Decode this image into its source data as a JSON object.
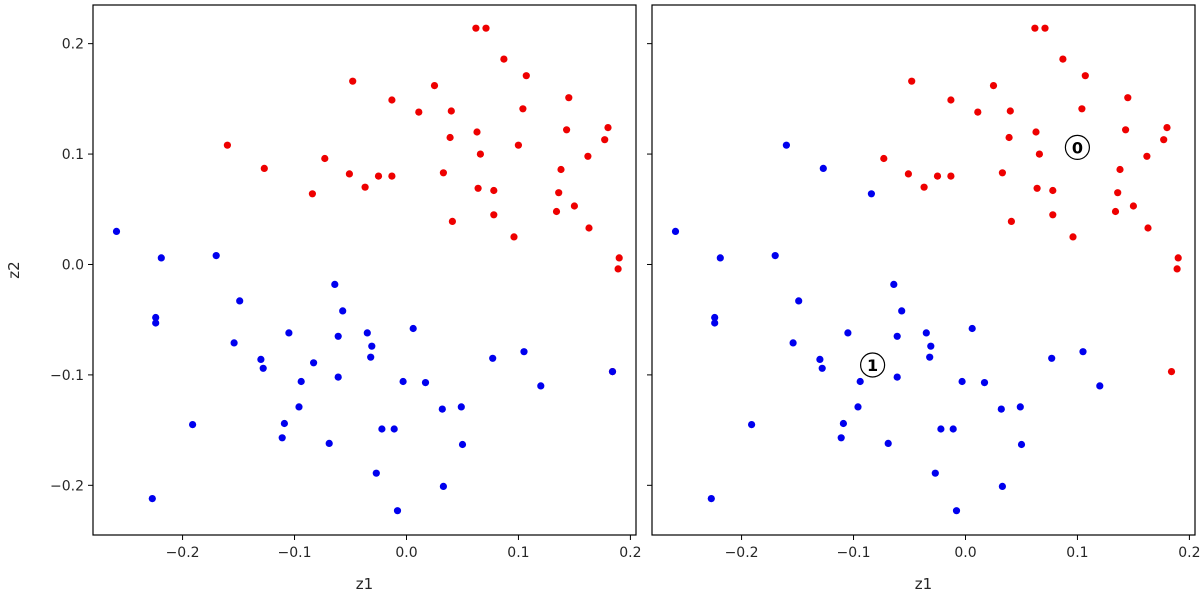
{
  "colors": {
    "class_1": "#0000ee",
    "class_0": "#ee0000",
    "frame": "#000000",
    "text": "#262626"
  },
  "chart_data": [
    {
      "type": "scatter",
      "panel": "left",
      "xlabel": "z1",
      "ylabel": "z2",
      "xlim": [
        -0.28,
        0.205
      ],
      "ylim": [
        -0.245,
        0.235
      ],
      "xticks": [
        -0.2,
        -0.1,
        0.0,
        0.1,
        0.2
      ],
      "xtick_labels": [
        "−0.2",
        "−0.1",
        "0.0",
        "0.1",
        "0.2"
      ],
      "yticks": [
        -0.2,
        -0.1,
        0.0,
        0.1,
        0.2
      ],
      "ytick_labels": [
        "−0.2",
        "−0.1",
        "0.0",
        "0.1",
        "0.2"
      ],
      "series": [
        {
          "color": "red",
          "points": [
            [
              0.062,
              0.214
            ],
            [
              0.071,
              0.214
            ],
            [
              0.087,
              0.186
            ],
            [
              0.107,
              0.171
            ],
            [
              -0.048,
              0.166
            ],
            [
              0.025,
              0.162
            ],
            [
              -0.013,
              0.149
            ],
            [
              0.145,
              0.151
            ],
            [
              0.011,
              0.138
            ],
            [
              0.04,
              0.139
            ],
            [
              0.104,
              0.141
            ],
            [
              0.063,
              0.12
            ],
            [
              0.143,
              0.122
            ],
            [
              0.18,
              0.124
            ],
            [
              0.039,
              0.115
            ],
            [
              0.177,
              0.113
            ],
            [
              -0.16,
              0.108
            ],
            [
              0.1,
              0.108
            ],
            [
              0.162,
              0.098
            ],
            [
              0.066,
              0.1
            ],
            [
              -0.073,
              0.096
            ],
            [
              -0.127,
              0.087
            ],
            [
              0.138,
              0.086
            ],
            [
              -0.051,
              0.082
            ],
            [
              0.033,
              0.083
            ],
            [
              -0.025,
              0.08
            ],
            [
              -0.013,
              0.08
            ],
            [
              -0.037,
              0.07
            ],
            [
              0.064,
              0.069
            ],
            [
              0.078,
              0.067
            ],
            [
              -0.084,
              0.064
            ],
            [
              0.136,
              0.065
            ],
            [
              0.15,
              0.053
            ],
            [
              0.134,
              0.048
            ],
            [
              0.078,
              0.045
            ],
            [
              0.041,
              0.039
            ],
            [
              0.163,
              0.033
            ],
            [
              0.096,
              0.025
            ],
            [
              0.19,
              0.006
            ],
            [
              0.189,
              -0.004
            ],
            [
              0.184,
              -0.097
            ]
          ]
        },
        {
          "color": "blue",
          "points": [
            [
              -0.259,
              0.03
            ],
            [
              -0.219,
              0.006
            ],
            [
              -0.17,
              0.008
            ],
            [
              -0.224,
              -0.048
            ],
            [
              -0.224,
              -0.053
            ],
            [
              -0.149,
              -0.033
            ],
            [
              -0.064,
              -0.018
            ],
            [
              -0.057,
              -0.042
            ],
            [
              -0.154,
              -0.071
            ],
            [
              -0.105,
              -0.062
            ],
            [
              -0.061,
              -0.065
            ],
            [
              -0.035,
              -0.062
            ],
            [
              0.006,
              -0.058
            ],
            [
              -0.031,
              -0.074
            ],
            [
              -0.032,
              -0.084
            ],
            [
              -0.13,
              -0.086
            ],
            [
              -0.128,
              -0.094
            ],
            [
              -0.083,
              -0.089
            ],
            [
              0.077,
              -0.085
            ],
            [
              0.105,
              -0.079
            ],
            [
              -0.061,
              -0.102
            ],
            [
              -0.094,
              -0.106
            ],
            [
              -0.003,
              -0.106
            ],
            [
              0.017,
              -0.107
            ],
            [
              0.12,
              -0.11
            ],
            [
              0.184,
              -0.097
            ],
            [
              -0.096,
              -0.129
            ],
            [
              0.049,
              -0.129
            ],
            [
              0.032,
              -0.131
            ],
            [
              -0.109,
              -0.144
            ],
            [
              -0.191,
              -0.145
            ],
            [
              -0.022,
              -0.149
            ],
            [
              -0.011,
              -0.149
            ],
            [
              -0.111,
              -0.157
            ],
            [
              -0.069,
              -0.162
            ],
            [
              0.05,
              -0.163
            ],
            [
              -0.027,
              -0.189
            ],
            [
              0.033,
              -0.201
            ],
            [
              -0.227,
              -0.212
            ],
            [
              -0.008,
              -0.223
            ]
          ]
        }
      ]
    },
    {
      "type": "scatter",
      "panel": "right",
      "xlabel": "z1",
      "ylabel": "",
      "xlim": [
        -0.28,
        0.205
      ],
      "ylim": [
        -0.245,
        0.235
      ],
      "xticks": [
        -0.2,
        -0.1,
        0.0,
        0.1,
        0.2
      ],
      "xtick_labels": [
        "−0.2",
        "−0.1",
        "0.0",
        "0.1",
        "0.2"
      ],
      "yticks": [
        -0.2,
        -0.1,
        0.0,
        0.1,
        0.2
      ],
      "ytick_labels": [],
      "series": [
        {
          "color": "red",
          "points": [
            [
              0.062,
              0.214
            ],
            [
              0.071,
              0.214
            ],
            [
              0.087,
              0.186
            ],
            [
              0.107,
              0.171
            ],
            [
              -0.048,
              0.166
            ],
            [
              0.025,
              0.162
            ],
            [
              -0.013,
              0.149
            ],
            [
              0.145,
              0.151
            ],
            [
              0.011,
              0.138
            ],
            [
              0.04,
              0.139
            ],
            [
              0.104,
              0.141
            ],
            [
              0.063,
              0.12
            ],
            [
              0.143,
              0.122
            ],
            [
              0.18,
              0.124
            ],
            [
              0.039,
              0.115
            ],
            [
              0.177,
              0.113
            ],
            [
              0.1,
              0.108
            ],
            [
              0.162,
              0.098
            ],
            [
              0.066,
              0.1
            ],
            [
              -0.073,
              0.096
            ],
            [
              0.138,
              0.086
            ],
            [
              -0.051,
              0.082
            ],
            [
              0.033,
              0.083
            ],
            [
              -0.025,
              0.08
            ],
            [
              -0.013,
              0.08
            ],
            [
              -0.037,
              0.07
            ],
            [
              0.064,
              0.069
            ],
            [
              0.078,
              0.067
            ],
            [
              0.136,
              0.065
            ],
            [
              0.15,
              0.053
            ],
            [
              0.134,
              0.048
            ],
            [
              0.078,
              0.045
            ],
            [
              0.041,
              0.039
            ],
            [
              0.163,
              0.033
            ],
            [
              0.096,
              0.025
            ],
            [
              0.19,
              0.006
            ],
            [
              0.189,
              -0.004
            ],
            [
              0.184,
              -0.097
            ]
          ]
        },
        {
          "color": "blue",
          "points": [
            [
              -0.259,
              0.03
            ],
            [
              -0.219,
              0.006
            ],
            [
              -0.17,
              0.008
            ],
            [
              -0.16,
              0.108
            ],
            [
              -0.127,
              0.087
            ],
            [
              -0.084,
              0.064
            ],
            [
              -0.224,
              -0.048
            ],
            [
              -0.224,
              -0.053
            ],
            [
              -0.149,
              -0.033
            ],
            [
              -0.064,
              -0.018
            ],
            [
              -0.057,
              -0.042
            ],
            [
              -0.154,
              -0.071
            ],
            [
              -0.105,
              -0.062
            ],
            [
              -0.061,
              -0.065
            ],
            [
              -0.035,
              -0.062
            ],
            [
              0.006,
              -0.058
            ],
            [
              -0.031,
              -0.074
            ],
            [
              -0.032,
              -0.084
            ],
            [
              -0.13,
              -0.086
            ],
            [
              -0.128,
              -0.094
            ],
            [
              0.077,
              -0.085
            ],
            [
              0.105,
              -0.079
            ],
            [
              -0.061,
              -0.102
            ],
            [
              -0.094,
              -0.106
            ],
            [
              -0.003,
              -0.106
            ],
            [
              0.017,
              -0.107
            ],
            [
              0.12,
              -0.11
            ],
            [
              -0.096,
              -0.129
            ],
            [
              0.049,
              -0.129
            ],
            [
              0.032,
              -0.131
            ],
            [
              -0.109,
              -0.144
            ],
            [
              -0.191,
              -0.145
            ],
            [
              -0.022,
              -0.149
            ],
            [
              -0.011,
              -0.149
            ],
            [
              -0.111,
              -0.157
            ],
            [
              -0.069,
              -0.162
            ],
            [
              0.05,
              -0.163
            ],
            [
              -0.027,
              -0.189
            ],
            [
              0.033,
              -0.201
            ],
            [
              -0.227,
              -0.212
            ],
            [
              -0.008,
              -0.223
            ]
          ]
        }
      ],
      "annotations": [
        {
          "text": "0",
          "x": 0.1,
          "y": 0.106
        },
        {
          "text": "1",
          "x": -0.083,
          "y": -0.091
        }
      ]
    }
  ]
}
